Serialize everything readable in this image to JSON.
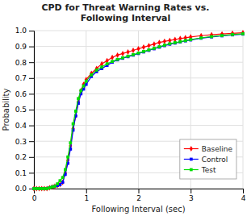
{
  "chart_data": {
    "type": "line",
    "title": "CPD for Threat Warning Rates vs.\nFollowing Interval",
    "x_label": "Following Interval (sec)",
    "y_label": "Probability",
    "xlim": [
      0,
      4
    ],
    "ylim": [
      0.0,
      1.0
    ],
    "xticks": [
      0,
      1,
      2,
      3,
      4
    ],
    "yticks": [
      {
        "value": 0.0,
        "label": "0.0"
      },
      0.1,
      0.2,
      0.3,
      0.4,
      0.5,
      0.6,
      0.7,
      0.8,
      0.9,
      {
        "value": 1.0,
        "label": "1.0"
      }
    ],
    "grid": true,
    "legend": "lower right",
    "x": [
      0.0,
      0.05,
      0.1,
      0.15,
      0.2,
      0.25,
      0.3,
      0.35,
      0.4,
      0.45,
      0.5,
      0.55,
      0.6,
      0.65,
      0.7,
      0.75,
      0.8,
      0.85,
      0.9,
      0.95,
      1.0,
      1.1,
      1.2,
      1.3,
      1.4,
      1.5,
      1.6,
      1.7,
      1.8,
      1.9,
      2.0,
      2.1,
      2.2,
      2.3,
      2.4,
      2.5,
      2.6,
      2.7,
      2.8,
      2.9,
      3.0,
      3.2,
      3.4,
      3.6,
      3.8,
      4.0
    ],
    "series": [
      {
        "name": "Baseline",
        "color": "#ff0000",
        "marker": "diamond",
        "values": [
          0.0,
          0.0,
          0.0,
          0.0,
          0.0,
          0.0,
          0.005,
          0.01,
          0.015,
          0.02,
          0.025,
          0.04,
          0.1,
          0.18,
          0.27,
          0.38,
          0.46,
          0.55,
          0.62,
          0.66,
          0.69,
          0.73,
          0.76,
          0.79,
          0.81,
          0.83,
          0.845,
          0.855,
          0.865,
          0.875,
          0.885,
          0.895,
          0.905,
          0.915,
          0.925,
          0.932,
          0.938,
          0.944,
          0.95,
          0.955,
          0.96,
          0.968,
          0.974,
          0.979,
          0.983,
          0.987
        ]
      },
      {
        "name": "Control",
        "color": "#0000ff",
        "marker": "square",
        "values": [
          0.0,
          0.0,
          0.0,
          0.0,
          0.0,
          0.0,
          0.005,
          0.01,
          0.015,
          0.02,
          0.025,
          0.04,
          0.09,
          0.16,
          0.25,
          0.37,
          0.46,
          0.54,
          0.6,
          0.63,
          0.66,
          0.71,
          0.74,
          0.76,
          0.78,
          0.8,
          0.815,
          0.825,
          0.835,
          0.845,
          0.855,
          0.865,
          0.875,
          0.885,
          0.895,
          0.905,
          0.914,
          0.921,
          0.928,
          0.935,
          0.941,
          0.952,
          0.96,
          0.967,
          0.973,
          0.978
        ]
      },
      {
        "name": "Test",
        "color": "#00dd00",
        "marker": "square",
        "values": [
          0.0,
          0.0,
          0.0,
          0.0,
          0.0,
          0.0,
          0.005,
          0.01,
          0.015,
          0.03,
          0.05,
          0.07,
          0.12,
          0.2,
          0.29,
          0.41,
          0.49,
          0.57,
          0.62,
          0.65,
          0.68,
          0.72,
          0.75,
          0.77,
          0.79,
          0.805,
          0.818,
          0.828,
          0.838,
          0.848,
          0.858,
          0.868,
          0.878,
          0.888,
          0.898,
          0.908,
          0.917,
          0.924,
          0.93,
          0.937,
          0.943,
          0.954,
          0.962,
          0.969,
          0.975,
          0.98
        ]
      }
    ]
  }
}
